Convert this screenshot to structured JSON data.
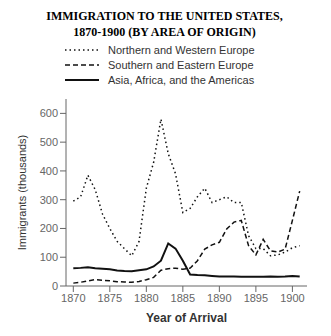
{
  "chart_data": {
    "type": "line",
    "title": "IMMIGRATION TO THE UNITED STATES,",
    "subtitle": "1870-1900 (BY AREA OF ORIGIN)",
    "xlabel": "Year of Arrival",
    "ylabel": "Immigrants (thousands)",
    "x": [
      1870,
      1871,
      1872,
      1873,
      1874,
      1875,
      1876,
      1877,
      1878,
      1879,
      1880,
      1881,
      1882,
      1883,
      1884,
      1885,
      1886,
      1887,
      1888,
      1889,
      1890,
      1891,
      1892,
      1893,
      1894,
      1895,
      1896,
      1897,
      1898,
      1899,
      1900,
      1901
    ],
    "series": [
      {
        "name": "Northern and Western Europe",
        "color": "#111111",
        "line_style": "dotted",
        "values": [
          295,
          310,
          385,
          335,
          250,
          200,
          155,
          130,
          105,
          155,
          340,
          430,
          580,
          460,
          390,
          255,
          270,
          310,
          340,
          290,
          300,
          310,
          290,
          290,
          175,
          130,
          130,
          105,
          108,
          118,
          133,
          140
        ]
      },
      {
        "name": "Southern and Eastern Europe",
        "color": "#111111",
        "line_style": "dashed",
        "values": [
          10,
          13,
          18,
          22,
          20,
          18,
          15,
          14,
          13,
          16,
          22,
          30,
          55,
          60,
          62,
          58,
          62,
          88,
          128,
          143,
          152,
          198,
          222,
          228,
          140,
          108,
          162,
          122,
          118,
          128,
          228,
          330
        ]
      },
      {
        "name": "Asia, Africa, and the Americas",
        "color": "#111111",
        "line_style": "solid",
        "values": [
          62,
          63,
          65,
          62,
          60,
          58,
          54,
          52,
          51,
          55,
          58,
          68,
          88,
          148,
          130,
          88,
          40,
          38,
          37,
          35,
          33,
          33,
          33,
          32,
          32,
          32,
          32,
          33,
          32,
          33,
          35,
          33
        ]
      }
    ],
    "xlim": [
      1869,
      1902
    ],
    "xticks": [
      1870,
      1875,
      1880,
      1885,
      1890,
      1895,
      1900
    ],
    "ylim": [
      0,
      650
    ],
    "yticks": [
      0,
      100,
      200,
      300,
      400,
      500,
      600
    ],
    "grid": false,
    "legend": "top"
  }
}
